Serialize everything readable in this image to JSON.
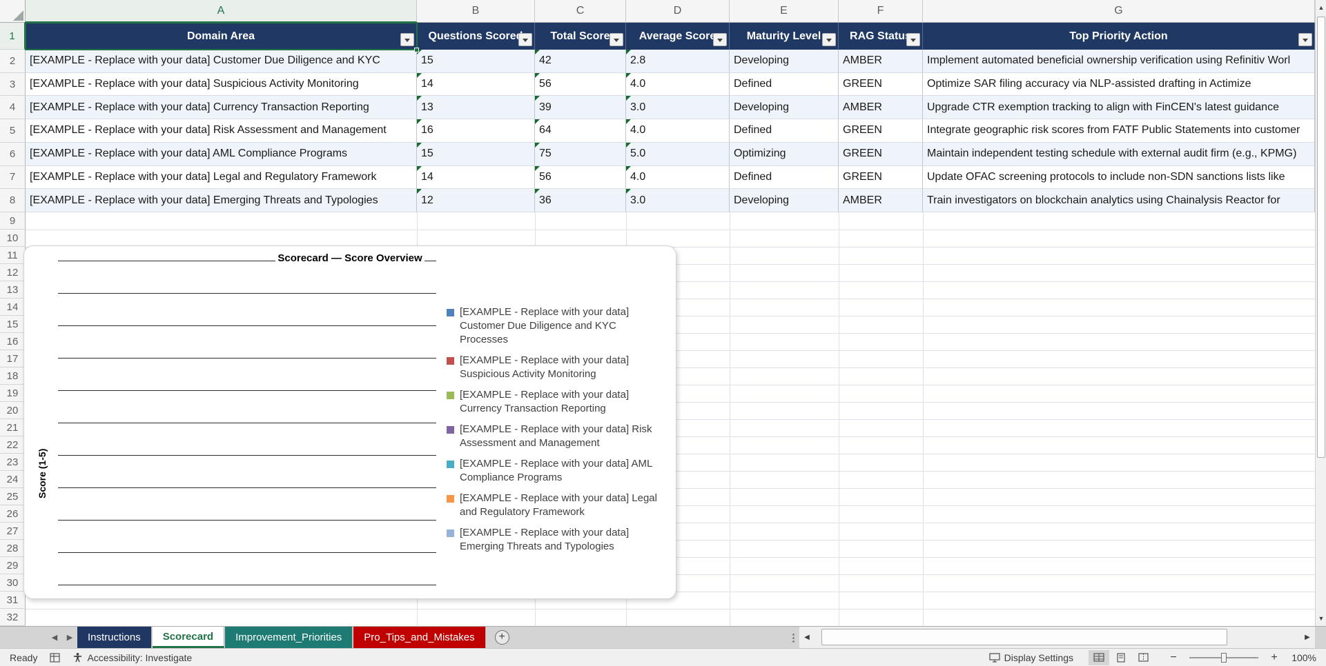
{
  "grid": {
    "selected_cell_ref": "A1",
    "column_letters": [
      "A",
      "B",
      "C",
      "D",
      "E",
      "F",
      "G"
    ],
    "visible_rows": {
      "from": 1,
      "to": 32
    },
    "header_row": [
      "Domain Area",
      "Questions Scored",
      "Total Score",
      "Average Score",
      "Maturity Level",
      "RAG Status",
      "Top Priority Action"
    ],
    "data_rows": [
      [
        "[EXAMPLE - Replace with your data] Customer Due Diligence and KYC",
        "15",
        "42",
        "2.8",
        "Developing",
        "AMBER",
        "Implement automated beneficial ownership verification using Refinitiv Worl"
      ],
      [
        "[EXAMPLE - Replace with your data] Suspicious Activity Monitoring",
        "14",
        "56",
        "4.0",
        "Defined",
        "GREEN",
        "Optimize SAR filing accuracy via NLP-assisted drafting in Actimize"
      ],
      [
        "[EXAMPLE - Replace with your data] Currency Transaction Reporting",
        "13",
        "39",
        "3.0",
        "Developing",
        "AMBER",
        "Upgrade CTR exemption tracking to align with FinCEN's latest guidance"
      ],
      [
        "[EXAMPLE - Replace with your data] Risk Assessment and Management",
        "16",
        "64",
        "4.0",
        "Defined",
        "GREEN",
        "Integrate geographic risk scores from FATF Public Statements into customer"
      ],
      [
        "[EXAMPLE - Replace with your data] AML Compliance Programs",
        "15",
        "75",
        "5.0",
        "Optimizing",
        "GREEN",
        "Maintain independent testing schedule with external audit firm (e.g., KPMG)"
      ],
      [
        "[EXAMPLE - Replace with your data] Legal and Regulatory Framework",
        "14",
        "56",
        "4.0",
        "Defined",
        "GREEN",
        "Update OFAC screening protocols to include non-SDN sanctions lists like"
      ],
      [
        "[EXAMPLE - Replace with your data] Emerging Threats and Typologies",
        "12",
        "36",
        "3.0",
        "Developing",
        "AMBER",
        "Train investigators on blockchain analytics using Chainalysis Reactor for"
      ]
    ],
    "error_flag_columns": [
      1,
      2,
      3
    ],
    "header_bg": "#1F3864",
    "selection_color": "#217346"
  },
  "chart_data": {
    "type": "bar",
    "title": "Scorecard — Score Overview",
    "ylabel": "Score (1-5)",
    "categories": [],
    "series": [
      {
        "name": "[EXAMPLE - Replace with your data] Customer Due Diligence and KYC Processes",
        "color": "#4F81BD",
        "values": []
      },
      {
        "name": "[EXAMPLE - Replace with your data] Suspicious Activity Monitoring",
        "color": "#C0504D",
        "values": []
      },
      {
        "name": "[EXAMPLE - Replace with your data] Currency Transaction Reporting",
        "color": "#9BBB59",
        "values": []
      },
      {
        "name": "[EXAMPLE - Replace with your data] Risk Assessment and Management",
        "color": "#8064A2",
        "values": []
      },
      {
        "name": "[EXAMPLE - Replace with your data] AML Compliance Programs",
        "color": "#4BACC6",
        "values": []
      },
      {
        "name": "[EXAMPLE - Replace with your data] Legal and Regulatory Framework",
        "color": "#F79646",
        "values": []
      },
      {
        "name": "[EXAMPLE - Replace with your data] Emerging Threats and Typologies",
        "color": "#95B3D7",
        "values": []
      }
    ],
    "legend_position": "right",
    "grid": true,
    "gridline_count": 11,
    "plot_area_empty": true
  },
  "sheet_tabs": {
    "tabs": [
      {
        "label": "Instructions",
        "bg": "#203764",
        "fg": "#FFFFFF",
        "active": false
      },
      {
        "label": "Scorecard",
        "bg": "#FFFFFF",
        "fg": "#217346",
        "active": true
      },
      {
        "label": "Improvement_Priorities",
        "bg": "#1E7B74",
        "fg": "#FFFFFF",
        "active": false
      },
      {
        "label": "Pro_Tips_and_Mistakes",
        "bg": "#C00000",
        "fg": "#FFFFFF",
        "active": false
      }
    ],
    "add_sheet_label": "+"
  },
  "status_bar": {
    "ready_label": "Ready",
    "accessibility_label": "Accessibility: Investigate",
    "display_settings_label": "Display Settings",
    "zoom_level": "100%",
    "zoom_minus": "−",
    "zoom_plus": "+"
  }
}
